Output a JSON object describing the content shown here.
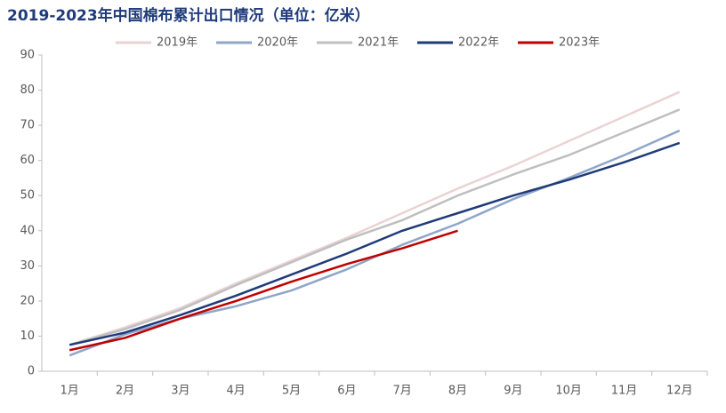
{
  "chart_data": {
    "type": "line",
    "title": "2019-2023年中国棉布累计出口情况（单位：亿米）",
    "categories": [
      "1月",
      "2月",
      "3月",
      "4月",
      "5月",
      "6月",
      "7月",
      "8月",
      "9月",
      "10月",
      "11月",
      "12月"
    ],
    "series": [
      {
        "name": "2019年",
        "color": "#ead3d3",
        "values": [
          7.5,
          12.5,
          18,
          25,
          31.5,
          38,
          45,
          52,
          58.5,
          65.5,
          72.5,
          79.5
        ]
      },
      {
        "name": "2020年",
        "color": "#8ea6c8",
        "values": [
          4.5,
          10.5,
          15,
          18.5,
          23,
          29,
          36,
          42,
          49,
          55,
          61.5,
          68.5
        ]
      },
      {
        "name": "2021年",
        "color": "#bfbfbf",
        "values": [
          7.5,
          12,
          17.5,
          24.5,
          31,
          37.5,
          43,
          50,
          56,
          61.5,
          68,
          74.5
        ]
      },
      {
        "name": "2022年",
        "color": "#1f3b7a",
        "values": [
          7.5,
          11,
          16,
          21.5,
          27.5,
          33.5,
          40,
          45,
          50,
          54.5,
          59.5,
          65
        ]
      },
      {
        "name": "2023年",
        "color": "#c00000",
        "values": [
          6,
          9.5,
          15,
          20,
          25.5,
          30.5,
          35,
          40,
          null,
          null,
          null,
          null
        ]
      }
    ],
    "ylim": [
      0,
      90
    ],
    "yticks": [
      0,
      10,
      20,
      30,
      40,
      50,
      60,
      70,
      80,
      90
    ],
    "grid": false
  }
}
